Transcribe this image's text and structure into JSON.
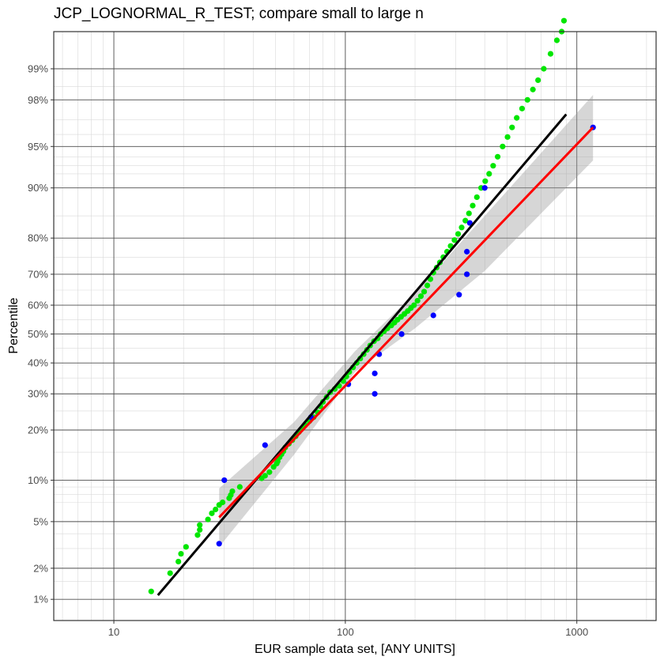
{
  "chart_data": {
    "type": "scatter",
    "title": "JCP_LOGNORMAL_R_TEST; compare small to large n",
    "xlabel": "EUR sample data set, [ANY UNITS]",
    "ylabel": "Percentile",
    "x_scale": "log10",
    "y_scale": "normal-probability",
    "xlim": [
      5.5,
      2200
    ],
    "ylim": [
      0.6,
      99.6
    ],
    "grid": true,
    "legend": "none",
    "x_ticks": [
      {
        "value": 10,
        "label": "10"
      },
      {
        "value": 100,
        "label": "100"
      },
      {
        "value": 1000,
        "label": "1000"
      }
    ],
    "y_ticks": [
      {
        "value": 1,
        "label": "1%"
      },
      {
        "value": 2,
        "label": "2%"
      },
      {
        "value": 5,
        "label": "5%"
      },
      {
        "value": 10,
        "label": "10%"
      },
      {
        "value": 20,
        "label": "20%"
      },
      {
        "value": 30,
        "label": "30%"
      },
      {
        "value": 40,
        "label": "40%"
      },
      {
        "value": 50,
        "label": "50%"
      },
      {
        "value": 60,
        "label": "60%"
      },
      {
        "value": 70,
        "label": "70%"
      },
      {
        "value": 80,
        "label": "80%"
      },
      {
        "value": 90,
        "label": "90%"
      },
      {
        "value": 95,
        "label": "95%"
      },
      {
        "value": 98,
        "label": "98%"
      },
      {
        "value": 99,
        "label": "99%"
      }
    ],
    "series": [
      {
        "color": "#00e600",
        "kind": "points",
        "points": [
          [
            14.5,
            1.2
          ],
          [
            17.5,
            1.8
          ],
          [
            19,
            2.3
          ],
          [
            19.5,
            2.7
          ],
          [
            20.5,
            3.1
          ],
          [
            23,
            3.9
          ],
          [
            23.5,
            4.3
          ],
          [
            23.5,
            4.7
          ],
          [
            25.5,
            5.2
          ],
          [
            26.5,
            5.8
          ],
          [
            27.5,
            6.2
          ],
          [
            28.5,
            6.7
          ],
          [
            29.5,
            7.0
          ],
          [
            31.5,
            7.5
          ],
          [
            32,
            7.9
          ],
          [
            32.5,
            8.4
          ],
          [
            35,
            9.0
          ],
          [
            43.5,
            10.3
          ],
          [
            45,
            10.7
          ],
          [
            47,
            11.3
          ],
          [
            49,
            12.2
          ],
          [
            50.5,
            12.8
          ],
          [
            51,
            13.2
          ],
          [
            52,
            14.0
          ],
          [
            53,
            14.6
          ],
          [
            54,
            15.2
          ],
          [
            55,
            16.0
          ],
          [
            57,
            16.8
          ],
          [
            59,
            17.6
          ],
          [
            61,
            18.5
          ],
          [
            63,
            19.5
          ],
          [
            65,
            20.4
          ],
          [
            67,
            21.3
          ],
          [
            70,
            22.3
          ],
          [
            73,
            23.3
          ],
          [
            76,
            24.6
          ],
          [
            78,
            26.3
          ],
          [
            80,
            27.6
          ],
          [
            83,
            29.0
          ],
          [
            86,
            30.5
          ],
          [
            90,
            31.5
          ],
          [
            94,
            32.5
          ],
          [
            98,
            34.0
          ],
          [
            101,
            35.5
          ],
          [
            104,
            37.0
          ],
          [
            108,
            38.5
          ],
          [
            112,
            40.0
          ],
          [
            116,
            41.5
          ],
          [
            120,
            43.0
          ],
          [
            124,
            44.5
          ],
          [
            128,
            46.0
          ],
          [
            133,
            47.5
          ],
          [
            138,
            48.5
          ],
          [
            142,
            50.0
          ],
          [
            147,
            51.0
          ],
          [
            152,
            52.0
          ],
          [
            158,
            53.0
          ],
          [
            163,
            54.0
          ],
          [
            168,
            55.0
          ],
          [
            174,
            56.0
          ],
          [
            180,
            57.0
          ],
          [
            186,
            58.0
          ],
          [
            192,
            59.0
          ],
          [
            198,
            60.0
          ],
          [
            205,
            61.5
          ],
          [
            212,
            63.0
          ],
          [
            219,
            64.5
          ],
          [
            226,
            66.5
          ],
          [
            233,
            68.5
          ],
          [
            240,
            70.5
          ],
          [
            248,
            72.0
          ],
          [
            256,
            73.5
          ],
          [
            265,
            75.0
          ],
          [
            275,
            76.5
          ],
          [
            285,
            78.0
          ],
          [
            296,
            79.5
          ],
          [
            307,
            81.0
          ],
          [
            318,
            82.5
          ],
          [
            330,
            84.0
          ],
          [
            342,
            85.5
          ],
          [
            355,
            87.0
          ],
          [
            370,
            88.5
          ],
          [
            386,
            90.0
          ],
          [
            402,
            91.0
          ],
          [
            418,
            92.0
          ],
          [
            435,
            93.0
          ],
          [
            455,
            94.0
          ],
          [
            478,
            95.0
          ],
          [
            502,
            95.8
          ],
          [
            525,
            96.5
          ],
          [
            550,
            97.1
          ],
          [
            580,
            97.6
          ],
          [
            612,
            98.0
          ],
          [
            646,
            98.4
          ],
          [
            680,
            98.7
          ],
          [
            720,
            99.0
          ],
          [
            770,
            99.3
          ],
          [
            820,
            99.5
          ],
          [
            860,
            99.6
          ],
          [
            880,
            99.7
          ]
        ]
      },
      {
        "color": "#0000ff",
        "kind": "points",
        "points": [
          [
            28.5,
            3.3
          ],
          [
            30,
            10.0
          ],
          [
            45,
            16.5
          ],
          [
            71,
            23.3
          ],
          [
            103,
            33.0
          ],
          [
            134,
            30.0
          ],
          [
            134,
            36.5
          ],
          [
            140,
            43.0
          ],
          [
            175,
            50.0
          ],
          [
            240,
            56.5
          ],
          [
            310,
            63.5
          ],
          [
            335,
            70.0
          ],
          [
            335,
            76.5
          ],
          [
            345,
            83.5
          ],
          [
            400,
            90.0
          ],
          [
            1175,
            96.5
          ]
        ]
      },
      {
        "color": "#000000",
        "kind": "fit-line",
        "points": [
          [
            15.5,
            1.1
          ],
          [
            900,
            97.3
          ]
        ]
      },
      {
        "color": "#ff0000",
        "kind": "fit-line",
        "points": [
          [
            28.5,
            5.4
          ],
          [
            1175,
            96.5
          ]
        ]
      }
    ],
    "confidence_band": {
      "color": "#999999",
      "upper": [
        [
          28.5,
          8.8
        ],
        [
          60,
          22.0
        ],
        [
          110,
          44.0
        ],
        [
          200,
          64.0
        ],
        [
          400,
          85.0
        ],
        [
          1175,
          98.2
        ]
      ],
      "lower": [
        [
          28.5,
          3.1
        ],
        [
          60,
          14.5
        ],
        [
          110,
          37.0
        ],
        [
          200,
          52.0
        ],
        [
          400,
          71.0
        ],
        [
          1175,
          93.6
        ]
      ]
    }
  }
}
